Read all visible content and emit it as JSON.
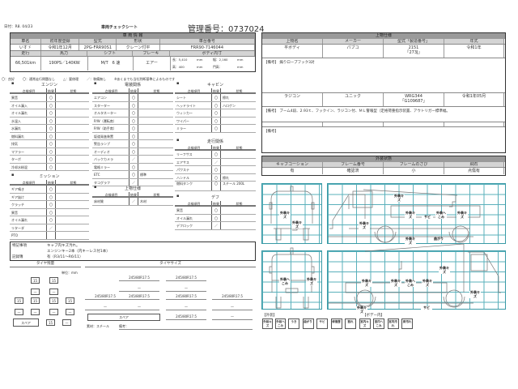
{
  "header": {
    "date": "日付：R8. 04/23",
    "title": "車両チェックシート",
    "control_no": "管理番号：0737024"
  },
  "vehicle": {
    "title": "車 両 情 報",
    "h1": [
      "車名",
      "初年度登録",
      "型式",
      "形状",
      "車台番号"
    ],
    "v1": [
      "いすゞ",
      "令和1年12月",
      "2PG-FRR90S1",
      "クレーン付平",
      "FRR90-7146044"
    ],
    "h2": [
      "走行",
      "馬力",
      "シフト",
      "ブレーキ",
      "ボディ内寸"
    ],
    "v2": [
      "66,501km",
      "190PS／140KW",
      "M/T　6 速",
      "エアー"
    ],
    "dims": {
      "len": "長：5,410",
      "mm1": "mm",
      "wid": "幅：2,160",
      "mm2": "mm",
      "hei": "高：400",
      "mm3": "mm",
      "gate": "門高：",
      "mm4": "mm"
    }
  },
  "legend_line": [
    "〇：良好",
    "〇：通常走行問題なし",
    "△：要修理",
    "／：装備無し",
    "※あくまでも当社判断基準によるものです"
  ],
  "col_headers": {
    "item": "点検項目",
    "result": "結果",
    "state": "状態"
  },
  "engine": {
    "title": "エンジン",
    "rows": [
      [
        "異音",
        "〇",
        ""
      ],
      [
        "オイル漏入",
        "〇",
        ""
      ],
      [
        "オイル漏れ",
        "〇",
        ""
      ],
      [
        "水温入",
        "〇",
        ""
      ],
      [
        "水漏れ",
        "〇",
        ""
      ],
      [
        "燃料漏れ",
        "〇",
        ""
      ],
      [
        "排気",
        "〇",
        ""
      ],
      [
        "マフラー",
        "〇",
        ""
      ],
      [
        "ターボ",
        "〇",
        ""
      ],
      [
        "冷却水粉混",
        "〇",
        ""
      ]
    ]
  },
  "mission": {
    "title": "ミッション",
    "rows": [
      [
        "ギア鳴き",
        "〇",
        ""
      ],
      [
        "ギア抜け",
        "〇",
        ""
      ],
      [
        "クラッチ",
        "〇",
        ""
      ],
      [
        "異音",
        "〇",
        ""
      ],
      [
        "オイル漏れ",
        "〇",
        ""
      ],
      [
        "リターダ",
        "／",
        ""
      ],
      [
        "PTO",
        "",
        ""
      ]
    ]
  },
  "electric": {
    "title": "電装関係",
    "rows": [
      [
        "エアコン",
        "〇",
        ""
      ],
      [
        "スターター",
        "〇",
        ""
      ],
      [
        "オルタネーター",
        "〇",
        ""
      ],
      [
        "P/W（運転席）",
        "〇",
        ""
      ],
      [
        "P/W（助手席）",
        "〇",
        ""
      ],
      [
        "坂道発進装置",
        "〇",
        ""
      ],
      [
        "警告ランプ",
        "〇",
        ""
      ],
      [
        "オーディオ",
        "〇",
        ""
      ],
      [
        "バックカメラ",
        "／",
        ""
      ],
      [
        "電格ミラー",
        "〇",
        ""
      ],
      [
        "ETC",
        "〇",
        "標準"
      ],
      [
        "タコグラフ",
        "／",
        ""
      ]
    ]
  },
  "upper": {
    "title": "上物仕様",
    "rows": [
      [
        "床材質",
        "／",
        "木材"
      ]
    ]
  },
  "cabin": {
    "title": "キャビン",
    "rows": [
      [
        "シート",
        "〇",
        "擦れ"
      ],
      [
        "ヘッドライト",
        "〇",
        "ハロゲン"
      ],
      [
        "ウィンカー",
        "〇",
        ""
      ],
      [
        "ワイパー",
        "〇",
        ""
      ],
      [
        "ミラー",
        "〇",
        ""
      ]
    ]
  },
  "running": {
    "title": "走行関係",
    "rows": [
      [
        "リーフサス",
        "〇",
        ""
      ],
      [
        "エアサス",
        "／",
        ""
      ],
      [
        "パワステ",
        "〇",
        ""
      ],
      [
        "ハンドル",
        "〇",
        "擦れ"
      ],
      [
        "燃料タンク",
        "〇",
        "スチール 200L"
      ]
    ]
  },
  "diff": {
    "title": "デフ",
    "rows": [
      [
        "異音",
        "〇",
        ""
      ],
      [
        "オイル漏れ",
        "〇",
        ""
      ],
      [
        "デフロック",
        "／",
        ""
      ]
    ]
  },
  "notes": {
    "label": "特記事項",
    "lines": [
      "キャブ内キズ汚れ。",
      "エンジンキー2本（内キーレス付1本）"
    ],
    "record_label": "記録簿",
    "record": "有（R3/11～R6/11）"
  },
  "tire_remain": {
    "title": "タイヤ残量",
    "unit": "単位：mm",
    "front": [
      "15",
      "15"
    ],
    "front_sub": [
      "—",
      "—"
    ],
    "rear": [
      "15",
      "15",
      "15",
      "15"
    ],
    "rear_sub": [
      "—",
      "—",
      "—",
      "—"
    ],
    "spare_label": "スペア",
    "spare": "15",
    "spare_sub": "—"
  },
  "tire_size": {
    "title": "タイヤサイズ",
    "front": [
      "245/80R17.5",
      "245/80R17.5"
    ],
    "front_sub": [
      "—",
      "—"
    ],
    "rear": [
      "245/80R17.5",
      "245/80R17.5",
      "245/80R17.5",
      "245/80R17.5"
    ],
    "rear_sub": [
      "—",
      "—",
      "—",
      "—"
    ],
    "spare_label": "スペア",
    "spare": "245/80R17.5",
    "spare_sub": "—",
    "material": "素材：スチール",
    "remark": "備考："
  },
  "body_spec": {
    "title": "上物仕様",
    "headers": [
      "上物名",
      "メーカー",
      "型式「製造番号」",
      "年式"
    ],
    "row1": [
      "平ボディ",
      "パブコ",
      "2151",
      "令和1年"
    ],
    "row1_serial": "「273J」",
    "remark1": "【備考】 煽りロープフック3対",
    "row2": [
      "ラジコン",
      "ユニック",
      "WRG344",
      "令和1年05月"
    ],
    "row2_serial": "「G109687」",
    "remark2": "【備考】 ブーム4段、2.93ｔ、フックイン、ラジコン付、ＭＬ警報型（定格荷重指示装置、アウトリガー標準幅。",
    "remark3": "【備考】"
  },
  "exterior": {
    "title": "外装状態",
    "headers": [
      "キャブコーション",
      "フレーム番号",
      "フレームのさび",
      "飛石"
    ],
    "values": [
      "有",
      "確認済",
      "小",
      "点傷有"
    ]
  },
  "damage_labels": [
    "外装キズ",
    "外装キズ",
    "外装キズ",
    "外装キズ",
    "サビ",
    "外装へこみ",
    "外装キズ",
    "外装キズ",
    "曲がり",
    "外装キズ",
    "外装へこみ",
    "外装キズ",
    "外装キズ",
    "外装キズ",
    "外装へこみ",
    "外装キズ",
    "外装キズ",
    "外装キズ",
    "外装キズ",
    "サビ"
  ],
  "legend": {
    "exterior_label": "【外装】",
    "interior_label": "【ボデー内】",
    "items": [
      "外装キズ",
      "外装へこみ",
      "うき",
      "曲がり",
      "サビ",
      "修復歴",
      "割れ",
      "室内キズ",
      "室内へこみ",
      "室内汚れ",
      "床汚れ"
    ]
  },
  "colors": {
    "grid": "#5ab0bb",
    "header_gray": "#9a9a9a",
    "subheader_gray": "#d4d4d4"
  }
}
